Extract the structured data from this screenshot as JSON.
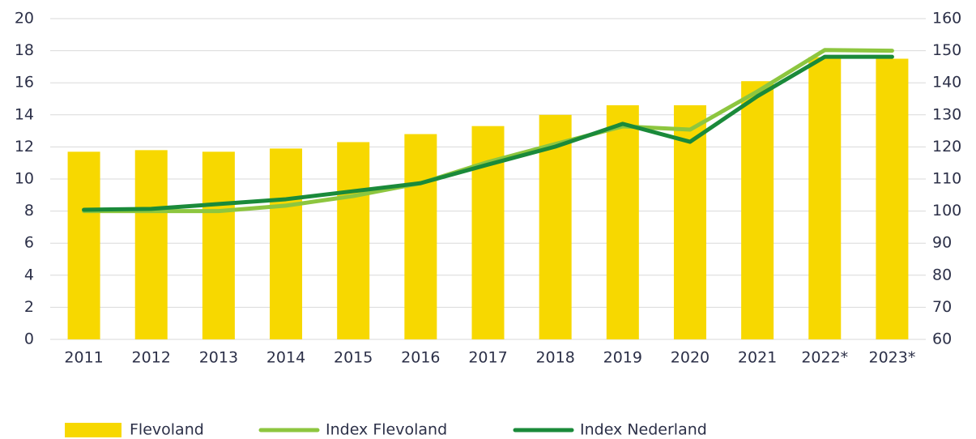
{
  "chart_data": {
    "type": "bar",
    "categories": [
      "2011",
      "2012",
      "2013",
      "2014",
      "2015",
      "2016",
      "2017",
      "2018",
      "2019",
      "2020",
      "2021",
      "2022*",
      "2023*"
    ],
    "series": [
      {
        "name": "Flevoland",
        "type": "bar",
        "color": "#f7d800",
        "values": [
          11.7,
          11.8,
          11.7,
          11.9,
          12.3,
          12.8,
          13.3,
          14.0,
          14.6,
          14.6,
          16.1,
          17.6,
          17.5
        ]
      },
      {
        "name": "Index Flevoland",
        "type": "line",
        "axis": "y2",
        "color": "#8dc63f",
        "values": [
          100,
          100,
          100,
          101.7,
          104.7,
          108.7,
          115.3,
          120.9,
          126.4,
          125.4,
          137.3,
          150.2,
          150
        ]
      },
      {
        "name": "Index Nederland",
        "type": "line",
        "axis": "y2",
        "color": "#1a8a3a",
        "values": [
          100.4,
          100.7,
          102.2,
          103.7,
          106.2,
          108.7,
          114.5,
          120.1,
          127.2,
          121.6,
          135.8,
          148.1,
          148.1
        ]
      }
    ],
    "ylim": [
      0,
      20
    ],
    "yticks": [
      0,
      2,
      4,
      6,
      8,
      10,
      12,
      14,
      16,
      18,
      20
    ],
    "y2lim": [
      60,
      160
    ],
    "y2ticks": [
      60,
      70,
      80,
      90,
      100,
      110,
      120,
      130,
      140,
      150,
      160
    ],
    "grid": true,
    "legend": "bottom"
  }
}
